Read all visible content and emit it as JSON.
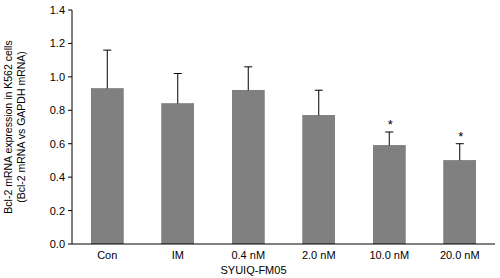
{
  "chart_data": {
    "type": "bar",
    "categories": [
      "Con",
      "IM",
      "0.4 nM",
      "2.0 nM",
      "10.0 nM",
      "20.0 nM"
    ],
    "values": [
      0.93,
      0.84,
      0.92,
      0.77,
      0.59,
      0.5
    ],
    "errors": [
      0.23,
      0.18,
      0.14,
      0.15,
      0.08,
      0.1
    ],
    "significance": [
      null,
      null,
      null,
      null,
      "*",
      "*"
    ],
    "color": "#808080",
    "x_label": "SYUIQ-FM05",
    "y_label": [
      "Bcl-2 mRNA expression in K562 cells",
      "(Bcl-2 mRNA vs GAPDH mRNA)"
    ],
    "ylim": [
      0,
      1.4
    ],
    "yticks": [
      {
        "value": 0,
        "label": "0.0"
      },
      0.2,
      0.4,
      0.6,
      0.8,
      {
        "value": 1,
        "label": "1.0"
      },
      1.2,
      1.4
    ],
    "grid": false
  }
}
